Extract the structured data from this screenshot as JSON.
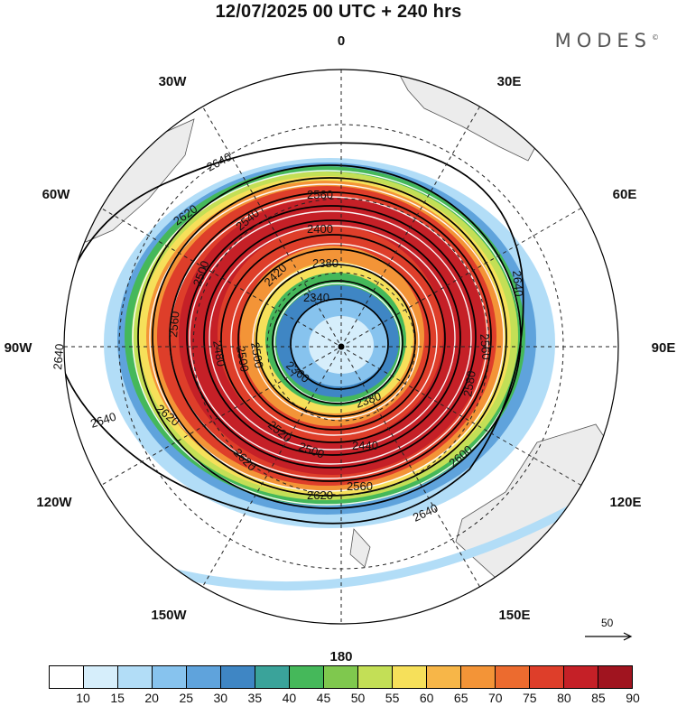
{
  "title": "12/07/2025  00 UTC  + 240 hrs",
  "brand": "MODES",
  "brand_mark": "©",
  "longitude_labels": {
    "n0": "0",
    "n30e": "30E",
    "n60e": "60E",
    "n90e": "90E",
    "n120e": "120E",
    "n150e": "150E",
    "n180": "180",
    "n150w": "150W",
    "n120w": "120W",
    "n90w": "90W",
    "n60w": "60W",
    "n30w": "30W"
  },
  "contour_labels": [
    "2640",
    "2620",
    "2600",
    "2580",
    "2560",
    "2540",
    "2520",
    "2500",
    "2480",
    "2460",
    "2440",
    "2420",
    "2400",
    "2380",
    "2360",
    "2340"
  ],
  "colorbar": {
    "colors": [
      "#ffffff",
      "#d6eefb",
      "#b2ddf7",
      "#87c3ee",
      "#5fa3dc",
      "#3f86c4",
      "#3aa39a",
      "#45b85a",
      "#7fc84e",
      "#c3df56",
      "#f6e05a",
      "#f7b648",
      "#f39437",
      "#ec6b2f",
      "#de3e2a",
      "#c52027",
      "#a0141f"
    ],
    "ticks": [
      "10",
      "15",
      "20",
      "25",
      "30",
      "35",
      "40",
      "45",
      "50",
      "55",
      "60",
      "65",
      "70",
      "75",
      "80",
      "85",
      "90"
    ]
  },
  "reference_vector": "50",
  "colors": {
    "land": "#ececec",
    "contour": "#000000",
    "streamline": "#ffffff"
  }
}
